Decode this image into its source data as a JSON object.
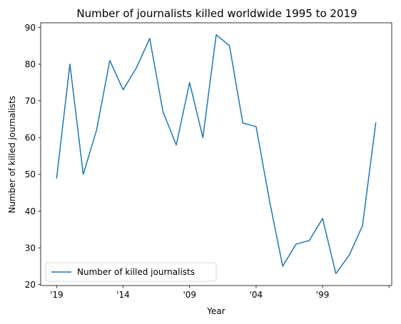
{
  "chart_data": {
    "type": "line",
    "title": "Number of journalists killed worldwide 1995 to 2019",
    "xlabel": "Year",
    "ylabel": "Number of killed journalists",
    "x": [
      2019,
      2018,
      2017,
      2016,
      2015,
      2014,
      2013,
      2012,
      2011,
      2010,
      2009,
      2008,
      2007,
      2006,
      2005,
      2004,
      2003,
      2002,
      2001,
      2000,
      1999,
      1998,
      1997,
      1996,
      1995
    ],
    "series": [
      {
        "name": "Number of killed journalists",
        "values": [
          49,
          80,
          50,
          62,
          81,
          73,
          79,
          87,
          67,
          58,
          75,
          60,
          88,
          85,
          64,
          63,
          43,
          25,
          31,
          32,
          38,
          23,
          28,
          36,
          64
        ],
        "color": "#1f77b4"
      }
    ],
    "xticks": [
      {
        "value": 2019,
        "label": "'19"
      },
      {
        "value": 2014,
        "label": "'14"
      },
      {
        "value": 2009,
        "label": "'09"
      },
      {
        "value": 2004,
        "label": "'04"
      },
      {
        "value": 1999,
        "label": "'99"
      },
      {
        "value": 1994,
        "label": ""
      }
    ],
    "yticks": [
      20,
      30,
      40,
      50,
      60,
      70,
      80,
      90
    ],
    "xlim": [
      2020.2,
      1993.8
    ],
    "ylim": [
      19.75,
      91.25
    ],
    "grid": false,
    "legend_position": "lower-left"
  }
}
